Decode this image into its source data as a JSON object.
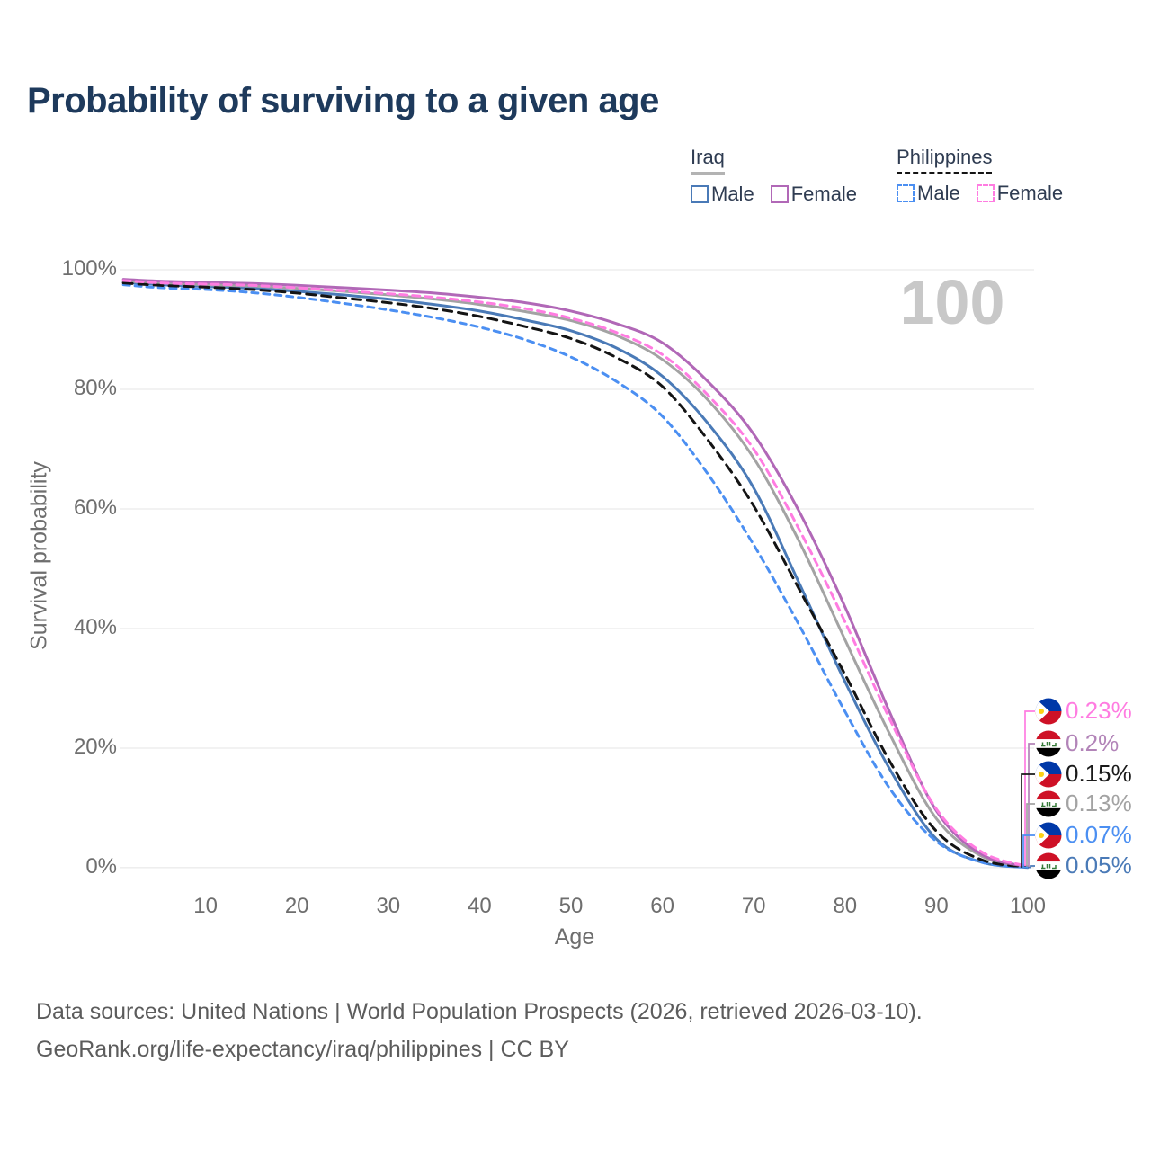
{
  "title": "Probability of surviving to a given age",
  "watermark": "100",
  "legend": {
    "groups": [
      {
        "label": "Iraq",
        "underline_style": "solid",
        "underline_color": "#b3b3b3",
        "items": [
          {
            "label": "Male",
            "series": "iraq_male"
          },
          {
            "label": "Female",
            "series": "iraq_female"
          }
        ]
      },
      {
        "label": "Philippines",
        "underline_style": "dashed",
        "underline_color": "#141414",
        "items": [
          {
            "label": "Male",
            "series": "philippines_male"
          },
          {
            "label": "Female",
            "series": "philippines_female"
          }
        ]
      }
    ]
  },
  "y_axis": {
    "title": "Survival probability",
    "ticks": [
      "100%",
      "80%",
      "60%",
      "40%",
      "20%",
      "0%"
    ]
  },
  "x_axis": {
    "title": "Age",
    "ticks": [
      "10",
      "20",
      "30",
      "40",
      "50",
      "60",
      "70",
      "80",
      "90",
      "100"
    ]
  },
  "footer": {
    "line1": "Data sources: United Nations | World Population Prospects (2026, retrieved 2026-03-10).",
    "line2": "GeoRank.org/life-expectancy/iraq/philippines | CC BY"
  },
  "chart_data": {
    "type": "line",
    "title": "Probability of surviving to a given age",
    "xlabel": "Age",
    "ylabel": "Survival probability",
    "xlim": [
      1,
      100
    ],
    "ylim": [
      0,
      100
    ],
    "grid": "horizontal",
    "legend_position": "top-right",
    "x_ticks": [
      10,
      20,
      30,
      40,
      50,
      60,
      70,
      80,
      90,
      100
    ],
    "y_ticks_percent": [
      0,
      20,
      40,
      60,
      80,
      100
    ],
    "ages": [
      1,
      5,
      10,
      15,
      20,
      25,
      30,
      35,
      40,
      45,
      50,
      55,
      60,
      65,
      70,
      75,
      80,
      85,
      90,
      95,
      100
    ],
    "series": [
      {
        "id": "iraq_male",
        "name": "Iraq Male",
        "color": "#4a7ab7",
        "dash": "solid",
        "end_label": "0.05%",
        "values": [
          97.9,
          97.5,
          97.2,
          96.9,
          96.4,
          95.8,
          95.1,
          94.2,
          93.1,
          91.6,
          89.8,
          86.9,
          82.2,
          74.3,
          63.5,
          47.5,
          31.1,
          16.2,
          4.8,
          0.9,
          0.05
        ]
      },
      {
        "id": "philippines_male",
        "name": "Philippines Male",
        "color": "#4b8ff2",
        "dash": "dashed",
        "end_label": "0.07%",
        "values": [
          97.5,
          97.0,
          96.7,
          96.2,
          95.4,
          94.4,
          93.3,
          92.0,
          90.4,
          88.3,
          85.4,
          81.3,
          75.5,
          65.8,
          54.0,
          40.5,
          26.1,
          13.0,
          4.4,
          0.9,
          0.07
        ]
      },
      {
        "id": "iraq_total",
        "name": "Iraq (both sexes)",
        "color": "#a3a3a3",
        "dash": "solid",
        "end_label": "0.13%",
        "values": [
          98.1,
          97.8,
          97.5,
          97.3,
          96.9,
          96.4,
          95.8,
          95.1,
          94.2,
          93.0,
          91.5,
          89.0,
          85.0,
          78.2,
          68.5,
          54.5,
          38.1,
          22.0,
          8.2,
          1.9,
          0.13
        ]
      },
      {
        "id": "philippines_total",
        "name": "Philippines (both sexes)",
        "color": "#141414",
        "dash": "dashed",
        "end_label": "0.15%",
        "values": [
          97.8,
          97.4,
          97.1,
          96.7,
          96.1,
          95.3,
          94.5,
          93.5,
          92.2,
          90.5,
          88.5,
          85.3,
          80.5,
          71.5,
          60.5,
          46.5,
          32.3,
          17.5,
          6.1,
          1.3,
          0.15
        ]
      },
      {
        "id": "iraq_female",
        "name": "Iraq Female",
        "color": "#b168b7",
        "dash": "solid",
        "end_label": "0.2%",
        "values": [
          98.4,
          98.1,
          97.9,
          97.7,
          97.4,
          97.0,
          96.6,
          96.1,
          95.4,
          94.5,
          93.1,
          91.0,
          87.8,
          81.3,
          72.5,
          59.5,
          43.6,
          25.6,
          9.5,
          2.2,
          0.2
        ]
      },
      {
        "id": "philippines_female",
        "name": "Philippines Female",
        "color": "#ff7ce1",
        "dash": "dashed",
        "end_label": "0.23%",
        "values": [
          98.2,
          97.8,
          97.6,
          97.4,
          97.0,
          96.5,
          96.0,
          95.4,
          94.6,
          93.5,
          91.9,
          89.5,
          85.8,
          79.0,
          70.0,
          56.5,
          41.1,
          24.5,
          9.8,
          2.6,
          0.23
        ]
      }
    ],
    "end_labels": [
      {
        "series": "philippines_female",
        "flag": "philippines-flag-icon",
        "value": "0.23%",
        "color": "#ff7ce1"
      },
      {
        "series": "iraq_female",
        "flag": "iraq-flag-icon",
        "value": "0.2%",
        "color": "#b284b8"
      },
      {
        "series": "philippines_total",
        "flag": "philippines-flag-icon",
        "value": "0.15%",
        "color": "#1a1a1a"
      },
      {
        "series": "iraq_total",
        "flag": "iraq-flag-icon",
        "value": "0.13%",
        "color": "#a3a3a3"
      },
      {
        "series": "philippines_male",
        "flag": "philippines-flag-icon",
        "value": "0.07%",
        "color": "#4b8ff2"
      },
      {
        "series": "iraq_male",
        "flag": "iraq-flag-icon",
        "value": "0.05%",
        "color": "#4a7ab7"
      }
    ]
  }
}
